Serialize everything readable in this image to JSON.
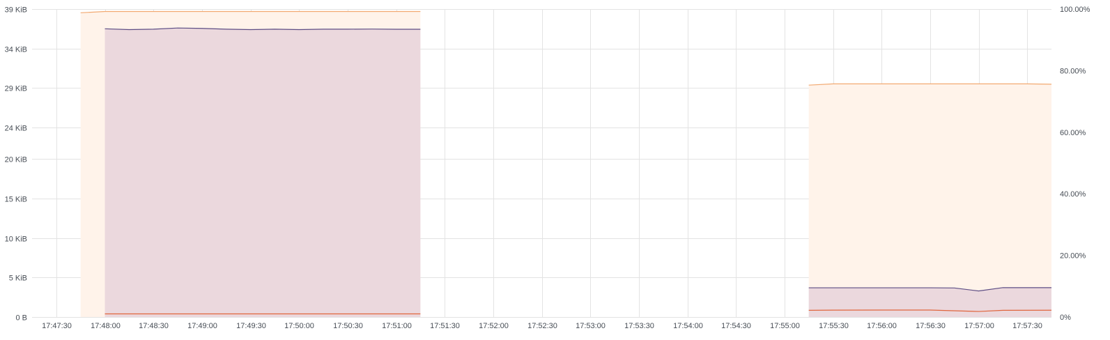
{
  "chart_data": {
    "type": "area",
    "x_unit": "time (HH:MM:SS)",
    "x_range": [
      "17:47:15",
      "17:57:45"
    ],
    "x_ticks": [
      "17:47:30",
      "17:48:00",
      "17:48:30",
      "17:49:00",
      "17:49:30",
      "17:50:00",
      "17:50:30",
      "17:51:00",
      "17:51:30",
      "17:52:00",
      "17:52:30",
      "17:53:00",
      "17:53:30",
      "17:54:00",
      "17:54:30",
      "17:55:00",
      "17:55:30",
      "17:56:00",
      "17:56:30",
      "17:57:00",
      "17:57:30"
    ],
    "y_left": {
      "unit": "KiB",
      "range": [
        0,
        39
      ],
      "tick_values": [
        0,
        5,
        10,
        15,
        20,
        24,
        29,
        34,
        39
      ],
      "tick_labels": [
        "0 B",
        "5 KiB",
        "10 KiB",
        "15 KiB",
        "20 KiB",
        "24 KiB",
        "29 KiB",
        "34 KiB",
        "39 KiB"
      ]
    },
    "y_right": {
      "unit": "%",
      "range": [
        0,
        100
      ],
      "tick_values": [
        0,
        20,
        40,
        60,
        80,
        100
      ],
      "tick_labels": [
        "0%",
        "20.00%",
        "40.00%",
        "60.00%",
        "80.00%",
        "100.00%"
      ]
    },
    "grid": true,
    "legend": "none",
    "series": [
      {
        "axis": "right",
        "color": "#f2a971",
        "fill": "#fff3ea",
        "segments": [
          [
            [
              "17:47:45",
              98.8
            ],
            [
              "17:48:00",
              99.2
            ],
            [
              "17:48:30",
              99.2
            ],
            [
              "17:49:00",
              99.2
            ],
            [
              "17:49:30",
              99.2
            ],
            [
              "17:50:00",
              99.2
            ],
            [
              "17:50:30",
              99.2
            ],
            [
              "17:51:00",
              99.2
            ],
            [
              "17:51:15",
              99.2
            ]
          ],
          [
            [
              "17:55:15",
              75.3
            ],
            [
              "17:55:30",
              75.7
            ],
            [
              "17:56:00",
              75.7
            ],
            [
              "17:56:30",
              75.7
            ],
            [
              "17:57:00",
              75.7
            ],
            [
              "17:57:30",
              75.7
            ],
            [
              "17:57:45",
              75.6
            ]
          ]
        ]
      },
      {
        "axis": "left",
        "color": "#5d4d84",
        "fill": "#ebd8dd",
        "segments": [
          [
            [
              "17:48:00",
              36.5
            ],
            [
              "17:48:15",
              36.4
            ],
            [
              "17:48:30",
              36.45
            ],
            [
              "17:48:45",
              36.6
            ],
            [
              "17:49:00",
              36.55
            ],
            [
              "17:49:15",
              36.45
            ],
            [
              "17:49:30",
              36.4
            ],
            [
              "17:49:45",
              36.45
            ],
            [
              "17:50:00",
              36.4
            ],
            [
              "17:50:15",
              36.45
            ],
            [
              "17:50:30",
              36.45
            ],
            [
              "17:50:45",
              36.47
            ],
            [
              "17:51:00",
              36.44
            ],
            [
              "17:51:15",
              36.44
            ]
          ],
          [
            [
              "17:55:15",
              3.7
            ],
            [
              "17:55:30",
              3.7
            ],
            [
              "17:56:00",
              3.7
            ],
            [
              "17:56:30",
              3.7
            ],
            [
              "17:56:45",
              3.68
            ],
            [
              "17:57:00",
              3.3
            ],
            [
              "17:57:15",
              3.72
            ],
            [
              "17:57:45",
              3.72
            ]
          ]
        ]
      },
      {
        "axis": "left",
        "color": "#e0653c",
        "fill": "none",
        "segments": [
          [
            [
              "17:48:00",
              0.4
            ],
            [
              "17:48:30",
              0.4
            ],
            [
              "17:49:00",
              0.4
            ],
            [
              "17:49:30",
              0.4
            ],
            [
              "17:50:00",
              0.4
            ],
            [
              "17:50:30",
              0.4
            ],
            [
              "17:51:00",
              0.4
            ],
            [
              "17:51:15",
              0.4
            ]
          ],
          [
            [
              "17:55:15",
              0.85
            ],
            [
              "17:55:30",
              0.87
            ],
            [
              "17:56:00",
              0.88
            ],
            [
              "17:56:30",
              0.88
            ],
            [
              "17:57:00",
              0.7
            ],
            [
              "17:57:15",
              0.85
            ],
            [
              "17:57:45",
              0.86
            ]
          ]
        ]
      }
    ]
  }
}
